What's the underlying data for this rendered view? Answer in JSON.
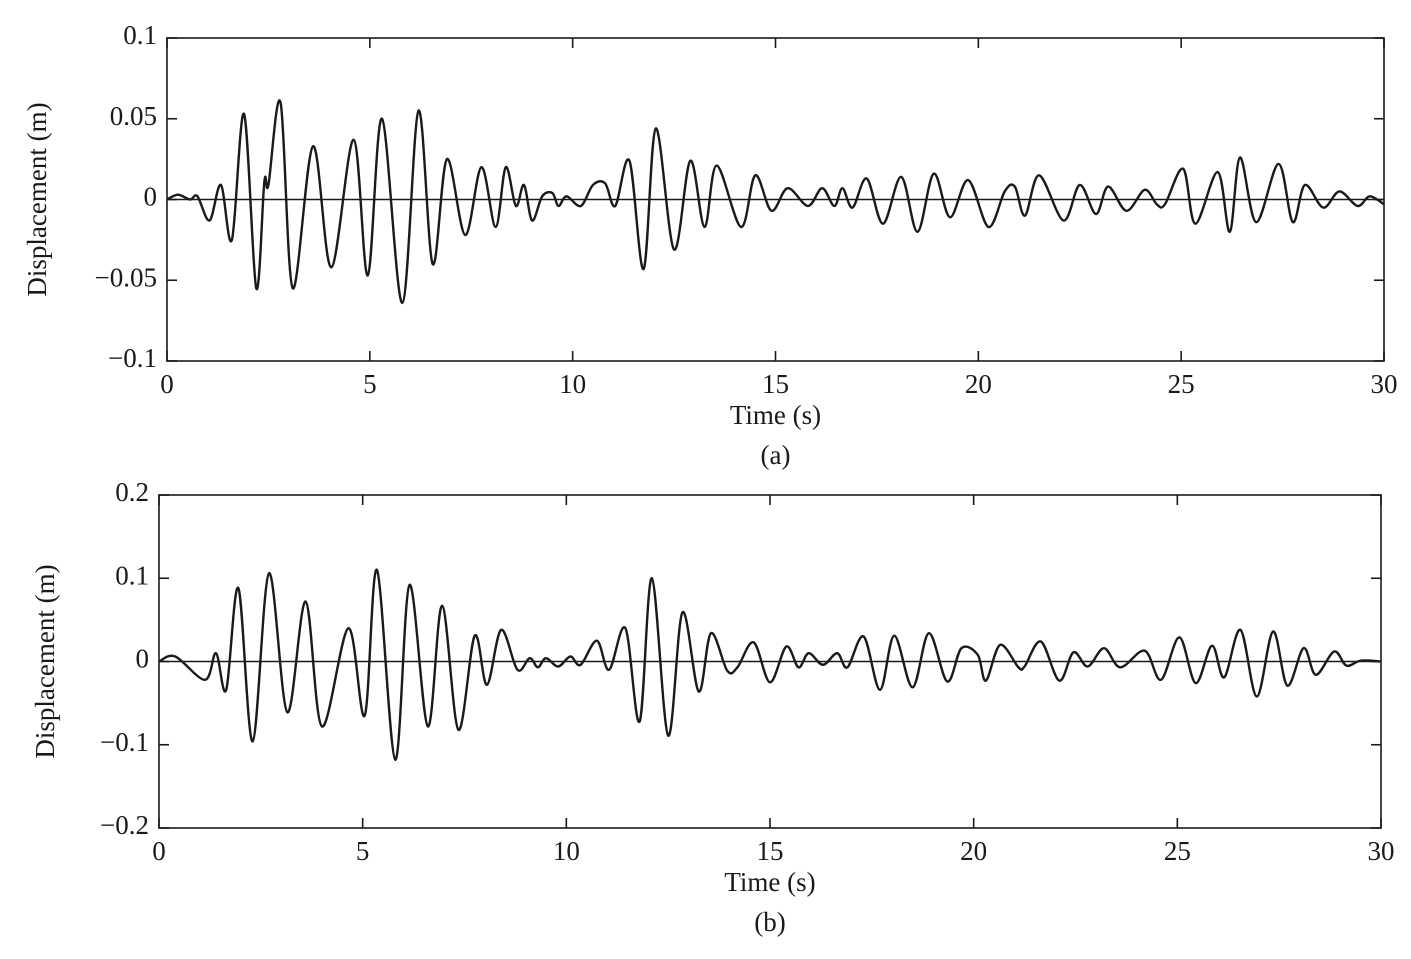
{
  "chart_data": [
    {
      "type": "line",
      "caption": "(a)",
      "x_label": "Time (s)",
      "y_label": "Displacement (m)",
      "color": "#1a1a1a",
      "xlim": [
        0,
        30
      ],
      "xticks": [
        0,
        5,
        10,
        15,
        20,
        25,
        30
      ],
      "ylim": [
        -0.1,
        0.1
      ],
      "yticks": [
        {
          "value": -0.1,
          "label": "−0.1"
        },
        {
          "value": -0.05,
          "label": "−0.05"
        },
        0,
        0.05,
        0.1
      ],
      "x": [
        0,
        0.27,
        0.57,
        0.75,
        1.05,
        1.33,
        1.6,
        1.9,
        2.2,
        2.4,
        2.5,
        2.8,
        3.1,
        3.6,
        4.05,
        4.6,
        4.95,
        5.3,
        5.8,
        6.2,
        6.55,
        6.9,
        7.35,
        7.75,
        8.1,
        8.35,
        8.6,
        8.8,
        9.0,
        9.25,
        9.5,
        9.65,
        9.85,
        10.2,
        10.5,
        10.8,
        11.05,
        11.4,
        11.75,
        12.05,
        12.5,
        12.9,
        13.25,
        13.55,
        14.15,
        14.5,
        14.9,
        15.3,
        15.8,
        16.15,
        16.45,
        16.65,
        16.9,
        17.25,
        17.65,
        18.1,
        18.5,
        18.9,
        19.3,
        19.75,
        20.25,
        20.65,
        20.9,
        21.15,
        21.5,
        22.1,
        22.5,
        22.9,
        23.2,
        23.65,
        24.1,
        24.4,
        24.6,
        25.05,
        25.35,
        25.9,
        26.2,
        26.45,
        26.85,
        27.4,
        27.75,
        28.05,
        28.5,
        28.9,
        29.35,
        29.65,
        30
      ],
      "values": [
        0,
        0.003,
        0,
        0.002,
        -0.013,
        0.009,
        -0.025,
        0.053,
        -0.055,
        0.011,
        0.009,
        0.06,
        -0.055,
        0.033,
        -0.042,
        0.037,
        -0.047,
        0.05,
        -0.064,
        0.055,
        -0.04,
        0.025,
        -0.022,
        0.02,
        -0.017,
        0.02,
        -0.004,
        0.009,
        -0.013,
        0.002,
        0.004,
        -0.004,
        0.002,
        -0.004,
        0.009,
        0.01,
        -0.004,
        0.024,
        -0.043,
        0.044,
        -0.031,
        0.024,
        -0.017,
        0.021,
        -0.017,
        0.015,
        -0.007,
        0.007,
        -0.004,
        0.007,
        -0.004,
        0.007,
        -0.005,
        0.013,
        -0.015,
        0.014,
        -0.02,
        0.016,
        -0.011,
        0.012,
        -0.017,
        0.005,
        0.008,
        -0.01,
        0.015,
        -0.013,
        0.009,
        -0.009,
        0.008,
        -0.007,
        0.006,
        -0.003,
        -0.003,
        0.019,
        -0.015,
        0.017,
        -0.02,
        0.026,
        -0.014,
        0.022,
        -0.014,
        0.009,
        -0.005,
        0.005,
        -0.004,
        0.002,
        -0.003
      ]
    },
    {
      "type": "line",
      "caption": "(b)",
      "x_label": "Time (s)",
      "y_label": "Displacement (m)",
      "color": "#1a1a1a",
      "xlim": [
        0,
        30
      ],
      "xticks": [
        0,
        5,
        10,
        15,
        20,
        25,
        30
      ],
      "ylim": [
        -0.2,
        0.2
      ],
      "yticks": [
        {
          "value": -0.2,
          "label": "−0.2"
        },
        {
          "value": -0.1,
          "label": "−0.1"
        },
        0,
        0.1,
        0.2
      ],
      "x": [
        0,
        0.4,
        1.13,
        1.4,
        1.65,
        1.95,
        2.3,
        2.7,
        3.15,
        3.6,
        4.0,
        4.65,
        5.05,
        5.35,
        5.8,
        6.15,
        6.6,
        6.95,
        7.35,
        7.75,
        8.05,
        8.4,
        8.8,
        9.1,
        9.3,
        9.5,
        9.8,
        10.1,
        10.35,
        10.75,
        11.05,
        11.45,
        11.8,
        12.1,
        12.5,
        12.85,
        13.25,
        13.55,
        13.95,
        14.2,
        14.6,
        15.0,
        15.4,
        15.7,
        15.95,
        16.3,
        16.65,
        16.9,
        17.3,
        17.7,
        18.05,
        18.5,
        18.9,
        19.35,
        19.7,
        20.1,
        20.3,
        20.65,
        21.1,
        21.25,
        21.65,
        22.1,
        22.45,
        22.8,
        23.2,
        23.6,
        24.2,
        24.6,
        25.05,
        25.45,
        25.85,
        26.15,
        26.55,
        26.95,
        27.35,
        27.7,
        28.1,
        28.4,
        28.85,
        29.15,
        29.5,
        30
      ],
      "values": [
        0,
        0.006,
        -0.022,
        0.01,
        -0.034,
        0.088,
        -0.096,
        0.106,
        -0.061,
        0.072,
        -0.078,
        0.04,
        -0.065,
        0.11,
        -0.118,
        0.092,
        -0.078,
        0.067,
        -0.082,
        0.031,
        -0.028,
        0.038,
        -0.01,
        0.004,
        -0.007,
        0.004,
        -0.006,
        0.006,
        -0.004,
        0.025,
        -0.01,
        0.04,
        -0.072,
        0.1,
        -0.089,
        0.059,
        -0.036,
        0.034,
        -0.011,
        -0.007,
        0.023,
        -0.025,
        0.018,
        -0.007,
        0.01,
        -0.004,
        0.01,
        -0.007,
        0.03,
        -0.034,
        0.031,
        -0.031,
        0.034,
        -0.024,
        0.016,
        0.008,
        -0.023,
        0.02,
        -0.007,
        -0.006,
        0.024,
        -0.023,
        0.011,
        -0.006,
        0.016,
        -0.007,
        0.013,
        -0.022,
        0.029,
        -0.026,
        0.019,
        -0.019,
        0.038,
        -0.042,
        0.036,
        -0.029,
        0.016,
        -0.016,
        0.012,
        -0.005,
        0.001,
        0
      ]
    }
  ]
}
